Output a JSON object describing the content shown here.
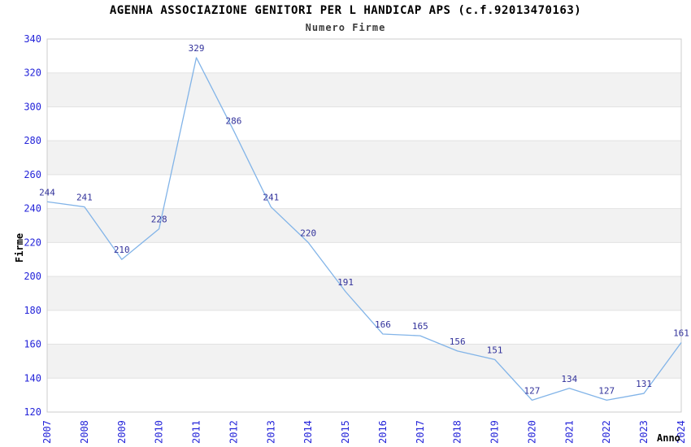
{
  "chart_data": {
    "type": "line",
    "title": "AGENHA ASSOCIAZIONE GENITORI PER L HANDICAP APS (c.f.92013470163)",
    "subtitle": "Numero Firme",
    "xlabel": "Anno",
    "ylabel": "Firme",
    "categories": [
      "2007",
      "2008",
      "2009",
      "2010",
      "2011",
      "2012",
      "2013",
      "2014",
      "2015",
      "2016",
      "2017",
      "2018",
      "2019",
      "2020",
      "2021",
      "2022",
      "2023",
      "2024"
    ],
    "values": [
      244,
      241,
      210,
      228,
      329,
      286,
      241,
      220,
      191,
      166,
      165,
      156,
      151,
      127,
      134,
      127,
      131,
      161
    ],
    "ylim": [
      120,
      340
    ],
    "ytick_step": 20,
    "grid": "horizontal-lines-with-alternating-bands",
    "legend": "none",
    "colors": {
      "line": "#82b4e8",
      "data_label": "#32329b",
      "tick_label": "#2424d9",
      "band_gray": "#f2f2f2",
      "band_white": "#ffffff",
      "gridline": "#e2e2e2",
      "plot_border": "#cccccc",
      "title": "#000000",
      "subtitle": "#3c3c3c",
      "axis_title": "#000000"
    }
  }
}
